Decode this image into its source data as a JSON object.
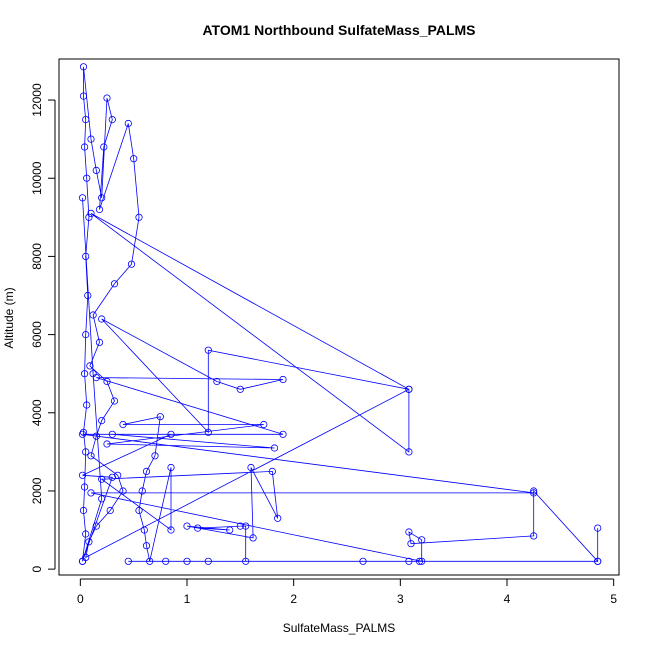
{
  "chart_data": {
    "type": "scatter",
    "title": "ATOM1 Northbound SulfateMass_PALMS",
    "xlabel": "SulfateMass_PALMS",
    "ylabel": "Altitude (m)",
    "xlim": [
      -0.2,
      5.05
    ],
    "ylim": [
      -150,
      13050
    ],
    "x_ticks": [
      0,
      1,
      2,
      3,
      4,
      5
    ],
    "y_ticks": [
      0,
      2000,
      4000,
      6000,
      8000,
      10000,
      12000
    ],
    "grid": false,
    "legend": "none",
    "color": "#0000ff",
    "series": [
      {
        "style": "points-and-lines",
        "points": [
          [
            0.02,
            200
          ],
          [
            0.05,
            900
          ],
          [
            0.03,
            1500
          ],
          [
            0.04,
            2100
          ],
          [
            0.05,
            3000
          ],
          [
            0.03,
            3500
          ],
          [
            0.06,
            4200
          ],
          [
            0.04,
            5000
          ],
          [
            0.05,
            6000
          ],
          [
            0.07,
            7000
          ],
          [
            0.05,
            8000
          ],
          [
            0.08,
            9000
          ],
          [
            0.06,
            10000
          ],
          [
            0.04,
            10800
          ],
          [
            0.05,
            11500
          ],
          [
            0.03,
            12100
          ],
          [
            0.03,
            12850
          ],
          [
            0.1,
            11000
          ],
          [
            0.15,
            10200
          ],
          [
            0.2,
            9500
          ],
          [
            0.25,
            12050
          ],
          [
            0.3,
            11500
          ],
          [
            0.22,
            10800
          ],
          [
            0.18,
            9200
          ],
          [
            0.45,
            11400
          ],
          [
            0.5,
            10500
          ],
          [
            0.55,
            9000
          ],
          [
            0.48,
            7800
          ],
          [
            0.32,
            7300
          ],
          [
            0.12,
            6500
          ],
          [
            0.18,
            5800
          ],
          [
            0.09,
            5200
          ],
          [
            0.25,
            4800
          ],
          [
            0.32,
            4300
          ],
          [
            0.2,
            3800
          ],
          [
            0.15,
            3400
          ],
          [
            0.1,
            2900
          ],
          [
            0.35,
            2400
          ],
          [
            0.4,
            2000
          ],
          [
            0.28,
            1500
          ],
          [
            0.15,
            1100
          ],
          [
            0.08,
            700
          ],
          [
            0.05,
            300
          ],
          [
            3.08,
            4600
          ],
          [
            3.08,
            3000
          ],
          [
            0.1,
            9100
          ],
          [
            3.08,
            4600
          ],
          [
            1.2,
            5600
          ],
          [
            1.2,
            3500
          ],
          [
            0.2,
            6400
          ],
          [
            1.28,
            4800
          ],
          [
            1.5,
            4600
          ],
          [
            1.9,
            4850
          ],
          [
            0.15,
            4900
          ],
          [
            1.9,
            3450
          ],
          [
            0.3,
            3450
          ],
          [
            1.82,
            3100
          ],
          [
            0.25,
            3200
          ],
          [
            1.72,
            3700
          ],
          [
            0.4,
            3700
          ],
          [
            0.75,
            3900
          ],
          [
            0.7,
            2900
          ],
          [
            0.62,
            2500
          ],
          [
            0.58,
            2000
          ],
          [
            0.55,
            1500
          ],
          [
            0.6,
            1000
          ],
          [
            0.62,
            600
          ],
          [
            0.65,
            200
          ],
          [
            0.85,
            2600
          ],
          [
            0.85,
            1000
          ],
          [
            0.2,
            2300
          ],
          [
            1.8,
            2500
          ],
          [
            1.85,
            1300
          ],
          [
            1.6,
            2600
          ],
          [
            1.62,
            800
          ],
          [
            1.0,
            1100
          ],
          [
            1.4,
            1000
          ],
          [
            1.1,
            1050
          ],
          [
            1.5,
            1100
          ],
          [
            1.55,
            1100
          ],
          [
            1.55,
            200
          ],
          [
            1.0,
            200
          ],
          [
            1.2,
            200
          ],
          [
            0.8,
            200
          ],
          [
            0.45,
            200
          ],
          [
            2.65,
            200
          ],
          [
            3.08,
            200
          ],
          [
            3.18,
            200
          ],
          [
            4.85,
            200
          ],
          [
            4.85,
            1050
          ],
          [
            4.85,
            200
          ],
          [
            4.25,
            2000
          ],
          [
            4.25,
            850
          ],
          [
            3.1,
            650
          ],
          [
            3.08,
            950
          ],
          [
            3.2,
            750
          ],
          [
            3.2,
            200
          ],
          [
            0.1,
            1950
          ],
          [
            4.25,
            1950
          ],
          [
            0.02,
            3450
          ],
          [
            0.85,
            3450
          ],
          [
            0.02,
            2400
          ],
          [
            0.3,
            2350
          ],
          [
            0.02,
            200
          ],
          [
            0.2,
            1800
          ],
          [
            0.12,
            5000
          ],
          [
            0.02,
            9500
          ]
        ]
      }
    ]
  }
}
